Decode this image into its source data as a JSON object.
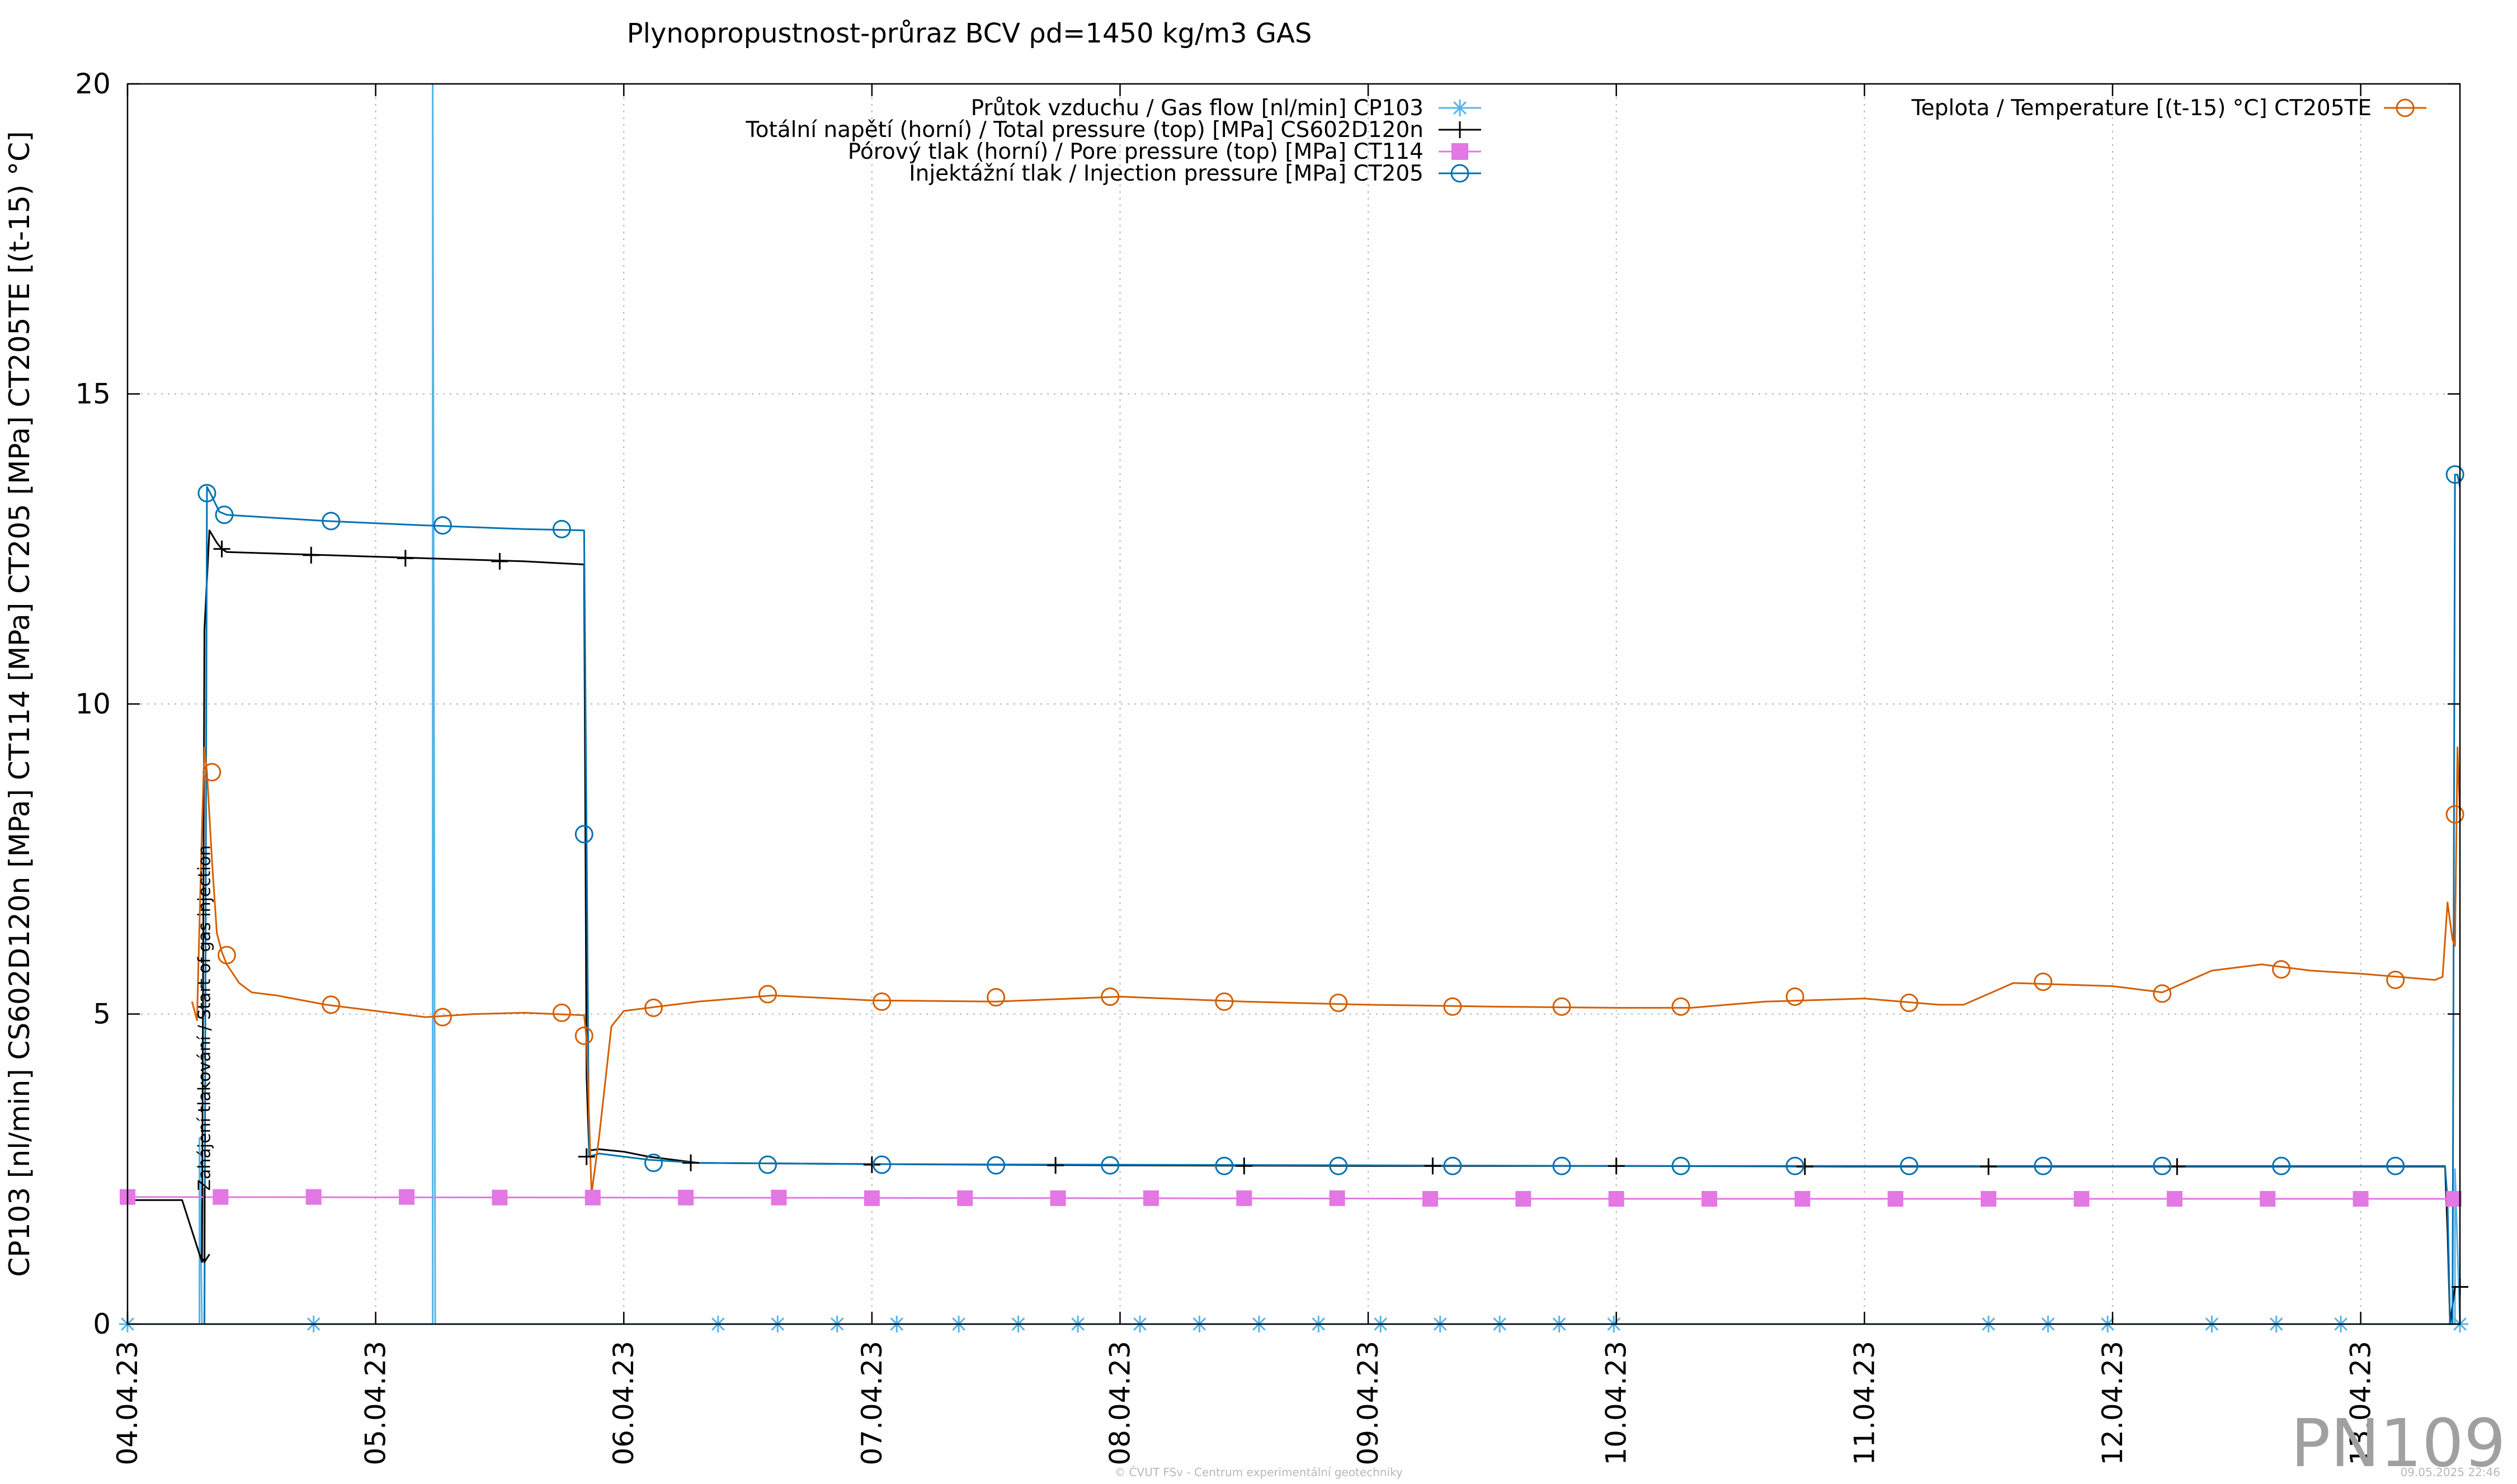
{
  "chart_data": {
    "type": "line",
    "title": "Plynopropustnost-průraz BCV ρd=1450 kg/m3 GAS",
    "ylabel": "CP103 [nl/min] CS602D120n [MPa] CT114 [MPa] CT205 [MPa] CT205TE [(t-15) °C]",
    "xlabel": "",
    "ylim": [
      0,
      20
    ],
    "yticks": [
      "0",
      "5",
      "10",
      "15",
      "20"
    ],
    "xlim_days": [
      0,
      9.4
    ],
    "xticks": [
      "04.04.23",
      "05.04.23",
      "06.04.23",
      "07.04.23",
      "08.04.23",
      "09.04.23",
      "10.04.23",
      "11.04.23",
      "12.04.23",
      "13.04.23"
    ],
    "grid": true,
    "x_unit": "days from 04.04.23 00:00",
    "series": [
      {
        "name": "Průtok vzduchu / Gas flow [nl/min] CP103",
        "color": "#56b4e9",
        "marker": "asterisk",
        "x": [
          0,
          0.29,
          0.29,
          0.3,
          1.22,
          1.23,
          1.23,
          1.24,
          9.38,
          9.38,
          9.4
        ],
        "y": [
          0,
          0,
          3.0,
          0,
          0,
          0,
          20,
          0,
          0,
          2.5,
          0
        ],
        "marker_x": [
          0,
          0.75,
          2.38,
          2.62,
          2.86,
          3.1,
          3.35,
          3.59,
          3.83,
          4.08,
          4.32,
          4.56,
          4.8,
          5.05,
          5.29,
          5.53,
          5.77,
          5.99,
          7.5,
          7.74,
          7.98,
          8.4,
          8.66,
          8.92,
          9.4
        ],
        "marker_y": [
          0,
          0,
          0,
          0,
          0,
          0,
          0,
          0,
          0,
          0,
          0,
          0,
          0,
          0,
          0,
          0,
          0,
          0,
          0,
          0,
          0,
          0,
          0,
          0,
          0
        ]
      },
      {
        "name": "Totální napětí (horní) / Total pressure (top) [MPa] CS602D120n",
        "color": "#000000",
        "marker": "plus",
        "x": [
          0,
          0.22,
          0.3,
          0.31,
          0.33,
          0.36,
          0.38,
          0.4,
          0.8,
          1.2,
          1.6,
          1.84,
          1.85,
          1.86,
          1.9,
          2.0,
          2.1,
          2.3,
          3.0,
          4.0,
          5.0,
          6.0,
          7.0,
          8.0,
          9.34,
          9.35,
          9.36,
          9.38,
          9.4
        ],
        "y": [
          2.0,
          2.0,
          1.0,
          11.2,
          12.8,
          12.6,
          12.5,
          12.45,
          12.4,
          12.35,
          12.3,
          12.25,
          4.0,
          2.8,
          2.82,
          2.78,
          2.7,
          2.6,
          2.58,
          2.56,
          2.55,
          2.55,
          2.54,
          2.54,
          2.54,
          1.5,
          0.0,
          0.6,
          0.6
        ],
        "marker_x": [
          0.38,
          0.74,
          1.12,
          1.5,
          1.85,
          2.27,
          3.0,
          3.74,
          4.5,
          5.26,
          6.0,
          6.76,
          7.5,
          8.26,
          9.4
        ],
        "marker_y": [
          12.5,
          12.4,
          12.35,
          12.3,
          2.7,
          2.6,
          2.57,
          2.56,
          2.55,
          2.55,
          2.55,
          2.54,
          2.54,
          2.54,
          0.6
        ]
      },
      {
        "name": "Pórový tlak (horní) / Pore pressure (top) [MPa] CT114",
        "color": "#e377e3",
        "marker": "square",
        "x": [
          0,
          2.0,
          4.0,
          6.0,
          8.0,
          9.4
        ],
        "y": [
          2.05,
          2.04,
          2.03,
          2.02,
          2.02,
          2.02
        ],
        "marker_x": [
          0,
          0.375,
          0.75,
          1.125,
          1.5,
          1.875,
          2.25,
          2.625,
          3.0,
          3.375,
          3.75,
          4.125,
          4.5,
          4.875,
          5.25,
          5.625,
          6.0,
          6.375,
          6.75,
          7.125,
          7.5,
          7.875,
          8.25,
          8.625,
          9.0,
          9.375
        ],
        "marker_y": [
          2.05,
          2.05,
          2.05,
          2.05,
          2.04,
          2.04,
          2.04,
          2.04,
          2.03,
          2.03,
          2.03,
          2.03,
          2.03,
          2.03,
          2.02,
          2.02,
          2.02,
          2.02,
          2.02,
          2.02,
          2.02,
          2.02,
          2.02,
          2.02,
          2.02,
          2.02
        ]
      },
      {
        "name": "Injektážní tlak / Injection pressure [MPa] CT205",
        "color": "#0072b2",
        "marker": "circle",
        "x": [
          0.31,
          0.32,
          0.34,
          0.37,
          0.4,
          0.8,
          1.2,
          1.6,
          1.84,
          1.85,
          1.86,
          1.9,
          2.0,
          2.1,
          2.3,
          3.0,
          4.0,
          5.0,
          6.0,
          7.0,
          8.0,
          9.34,
          9.35,
          9.36,
          9.37,
          9.38,
          9.39,
          9.4
        ],
        "y": [
          0,
          13.5,
          13.35,
          13.1,
          13.05,
          12.95,
          12.88,
          12.82,
          12.8,
          7.9,
          2.7,
          2.75,
          2.7,
          2.65,
          2.6,
          2.58,
          2.57,
          2.56,
          2.55,
          2.55,
          2.55,
          2.55,
          2.0,
          0.0,
          0.0,
          13.7,
          13.7,
          13.5
        ],
        "marker_x": [
          0.32,
          0.39,
          0.82,
          1.27,
          1.75,
          1.84,
          2.12,
          2.58,
          3.04,
          3.5,
          3.96,
          4.42,
          4.88,
          5.34,
          5.78,
          6.26,
          6.72,
          7.18,
          7.72,
          8.2,
          8.68,
          9.14,
          9.38
        ],
        "marker_y": [
          13.4,
          13.05,
          12.95,
          12.88,
          12.82,
          7.9,
          2.6,
          2.57,
          2.57,
          2.56,
          2.56,
          2.55,
          2.55,
          2.55,
          2.55,
          2.55,
          2.55,
          2.55,
          2.55,
          2.55,
          2.55,
          2.55,
          13.7
        ]
      },
      {
        "name": "Teplota / Temperature [(t-15) °C] CT205TE",
        "color": "#d55e00",
        "marker": "circle",
        "x": [
          0.26,
          0.28,
          0.3,
          0.31,
          0.32,
          0.34,
          0.36,
          0.38,
          0.4,
          0.45,
          0.5,
          0.6,
          0.8,
          1.0,
          1.2,
          1.4,
          1.6,
          1.84,
          1.85,
          1.87,
          1.9,
          1.95,
          2.0,
          2.1,
          2.3,
          2.6,
          3.0,
          3.5,
          4.0,
          4.5,
          5.0,
          5.5,
          6.0,
          6.3,
          6.6,
          7.0,
          7.3,
          7.4,
          7.6,
          8.0,
          8.2,
          8.4,
          8.6,
          8.8,
          9.0,
          9.3,
          9.33,
          9.35,
          9.37,
          9.38,
          9.39,
          9.4
        ],
        "y": [
          5.2,
          4.9,
          8.0,
          9.3,
          8.9,
          7.5,
          6.3,
          6.0,
          5.8,
          5.5,
          5.35,
          5.3,
          5.15,
          5.05,
          4.95,
          5.0,
          5.02,
          4.98,
          4.6,
          2.1,
          3.0,
          4.8,
          5.05,
          5.1,
          5.2,
          5.3,
          5.22,
          5.2,
          5.28,
          5.2,
          5.15,
          5.12,
          5.1,
          5.1,
          5.2,
          5.25,
          5.15,
          5.15,
          5.5,
          5.45,
          5.35,
          5.7,
          5.8,
          5.7,
          5.65,
          5.55,
          5.6,
          6.8,
          6.2,
          6.1,
          9.3,
          8.2
        ],
        "marker_x": [
          0.34,
          0.4,
          0.82,
          1.27,
          1.75,
          1.84,
          2.12,
          2.58,
          3.04,
          3.5,
          3.96,
          4.42,
          4.88,
          5.34,
          5.78,
          6.26,
          6.72,
          7.18,
          7.72,
          8.2,
          8.68,
          9.14,
          9.38
        ],
        "marker_y": [
          8.9,
          5.95,
          5.15,
          4.95,
          5.02,
          4.65,
          5.1,
          5.32,
          5.2,
          5.27,
          5.28,
          5.2,
          5.18,
          5.12,
          5.12,
          5.12,
          5.28,
          5.18,
          5.52,
          5.33,
          5.72,
          5.55,
          8.22
        ]
      }
    ],
    "annotation": "Zahájení tlakování / Start of gas injection",
    "annotation_x": 0.31,
    "watermark": "PN109",
    "footer_left": "© ČVUT FSv - Centrum experimentální geotechniky",
    "footer_right": "09.05.2025 22:46"
  }
}
